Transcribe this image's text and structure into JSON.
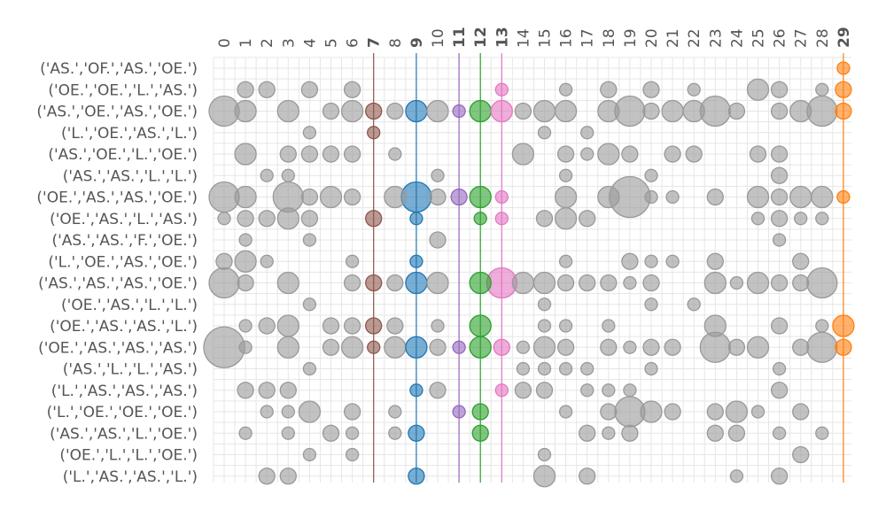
{
  "chart_data": {
    "type": "scatter",
    "title": "",
    "xlabel": "",
    "ylabel": "",
    "x_categories": [
      "0",
      "1",
      "2",
      "3",
      "4",
      "5",
      "6",
      "7",
      "8",
      "9",
      "10",
      "11",
      "12",
      "13",
      "14",
      "15",
      "16",
      "17",
      "18",
      "19",
      "20",
      "21",
      "22",
      "23",
      "24",
      "25",
      "26",
      "27",
      "28",
      "29"
    ],
    "y_categories": [
      "('AS.','OF.','AS.','OE.')",
      "('OE.','OE.','L.','AS.')",
      "('AS.','OE.','AS.','OE.')",
      "('L.','OE.','AS.','L.')",
      "('AS.','OE.','L.','OE.')",
      "('AS.','AS.','L.','L.')",
      "('OE.','AS.','AS.','OE.')",
      "('OE.','AS.','L.','AS.')",
      "('AS.','AS.','F.','OE.')",
      "('L.','OE.','AS.','OE.')",
      "('AS.','AS.','AS.','OE.')",
      "('OE.','AS.','L.','L.')",
      "('OE.','AS.','AS.','L.')",
      "('OE.','AS.','AS.','AS.')",
      "('AS.','L.','L.','AS.')",
      "('L.','AS.','AS.','AS.')",
      "('L.','OE.','OE.','OE.')",
      "('AS.','AS.','L.','OE.')",
      "('OE.','L.','L.','OE.')",
      "('L.','AS.','AS.','L.')"
    ],
    "highlighted_columns": [
      {
        "x": 7,
        "color": "#8c564b"
      },
      {
        "x": 9,
        "color": "#1f77b4"
      },
      {
        "x": 11,
        "color": "#9467bd"
      },
      {
        "x": 12,
        "color": "#2ca02c"
      },
      {
        "x": 13,
        "color": "#e377c2"
      },
      {
        "x": 29,
        "color": "#ff7f0e"
      }
    ],
    "default_color": "#999999",
    "grid": true,
    "size_unit": "relative marker size (1-5)",
    "points": [
      [
        29,
        0,
        1
      ],
      [
        1,
        1,
        2
      ],
      [
        2,
        1,
        2
      ],
      [
        4,
        1,
        2
      ],
      [
        6,
        1,
        2
      ],
      [
        13,
        1,
        1
      ],
      [
        16,
        1,
        1
      ],
      [
        18,
        1,
        2
      ],
      [
        20,
        1,
        2
      ],
      [
        22,
        1,
        1
      ],
      [
        25,
        1,
        3
      ],
      [
        26,
        1,
        2
      ],
      [
        28,
        1,
        1
      ],
      [
        29,
        1,
        2
      ],
      [
        0,
        2,
        4
      ],
      [
        1,
        2,
        3
      ],
      [
        3,
        2,
        3
      ],
      [
        5,
        2,
        2
      ],
      [
        6,
        2,
        3
      ],
      [
        7,
        2,
        2
      ],
      [
        8,
        2,
        2
      ],
      [
        9,
        2,
        3
      ],
      [
        10,
        2,
        3
      ],
      [
        11,
        2,
        1
      ],
      [
        12,
        2,
        3
      ],
      [
        13,
        2,
        3
      ],
      [
        14,
        2,
        2
      ],
      [
        15,
        2,
        3
      ],
      [
        16,
        2,
        3
      ],
      [
        18,
        2,
        3
      ],
      [
        19,
        2,
        4
      ],
      [
        20,
        2,
        2
      ],
      [
        21,
        2,
        3
      ],
      [
        22,
        2,
        3
      ],
      [
        23,
        2,
        4
      ],
      [
        24,
        2,
        2
      ],
      [
        26,
        2,
        2
      ],
      [
        27,
        2,
        3
      ],
      [
        28,
        2,
        4
      ],
      [
        29,
        2,
        2
      ],
      [
        4,
        3,
        1
      ],
      [
        7,
        3,
        1
      ],
      [
        15,
        3,
        1
      ],
      [
        17,
        3,
        1
      ],
      [
        1,
        4,
        3
      ],
      [
        3,
        4,
        2
      ],
      [
        4,
        4,
        2
      ],
      [
        5,
        4,
        2
      ],
      [
        6,
        4,
        2
      ],
      [
        8,
        4,
        1
      ],
      [
        14,
        4,
        3
      ],
      [
        16,
        4,
        2
      ],
      [
        17,
        4,
        1
      ],
      [
        18,
        4,
        3
      ],
      [
        19,
        4,
        2
      ],
      [
        21,
        4,
        2
      ],
      [
        22,
        4,
        2
      ],
      [
        25,
        4,
        2
      ],
      [
        26,
        4,
        2
      ],
      [
        2,
        5,
        1
      ],
      [
        3,
        5,
        1
      ],
      [
        10,
        5,
        1
      ],
      [
        16,
        5,
        1
      ],
      [
        20,
        5,
        1
      ],
      [
        26,
        5,
        2
      ],
      [
        0,
        6,
        4
      ],
      [
        1,
        6,
        3
      ],
      [
        3,
        6,
        4
      ],
      [
        4,
        6,
        2
      ],
      [
        5,
        6,
        3
      ],
      [
        6,
        6,
        2
      ],
      [
        8,
        6,
        3
      ],
      [
        9,
        6,
        4
      ],
      [
        10,
        6,
        2
      ],
      [
        11,
        6,
        2
      ],
      [
        12,
        6,
        3
      ],
      [
        13,
        6,
        1
      ],
      [
        16,
        6,
        3
      ],
      [
        18,
        6,
        3
      ],
      [
        19,
        6,
        5
      ],
      [
        20,
        6,
        1
      ],
      [
        21,
        6,
        1
      ],
      [
        23,
        6,
        2
      ],
      [
        25,
        6,
        3
      ],
      [
        26,
        6,
        2
      ],
      [
        27,
        6,
        3
      ],
      [
        28,
        6,
        3
      ],
      [
        29,
        6,
        1
      ],
      [
        0,
        7,
        1
      ],
      [
        1,
        7,
        2
      ],
      [
        2,
        7,
        2
      ],
      [
        3,
        7,
        3
      ],
      [
        4,
        7,
        2
      ],
      [
        7,
        7,
        2
      ],
      [
        9,
        7,
        1
      ],
      [
        12,
        7,
        1
      ],
      [
        13,
        7,
        1
      ],
      [
        15,
        7,
        2
      ],
      [
        16,
        7,
        3
      ],
      [
        17,
        7,
        2
      ],
      [
        25,
        7,
        1
      ],
      [
        26,
        7,
        2
      ],
      [
        27,
        7,
        1
      ],
      [
        28,
        7,
        1
      ],
      [
        1,
        8,
        1
      ],
      [
        4,
        8,
        1
      ],
      [
        10,
        8,
        2
      ],
      [
        26,
        8,
        1
      ],
      [
        0,
        9,
        2
      ],
      [
        1,
        9,
        3
      ],
      [
        2,
        9,
        1
      ],
      [
        6,
        9,
        1
      ],
      [
        9,
        9,
        1
      ],
      [
        16,
        9,
        1
      ],
      [
        19,
        9,
        2
      ],
      [
        20,
        9,
        1
      ],
      [
        21,
        9,
        1
      ],
      [
        23,
        9,
        2
      ],
      [
        27,
        9,
        2
      ],
      [
        0,
        10,
        4
      ],
      [
        1,
        10,
        2
      ],
      [
        3,
        10,
        3
      ],
      [
        6,
        10,
        2
      ],
      [
        7,
        10,
        2
      ],
      [
        8,
        10,
        2
      ],
      [
        9,
        10,
        3
      ],
      [
        10,
        10,
        3
      ],
      [
        12,
        10,
        3
      ],
      [
        13,
        10,
        4
      ],
      [
        14,
        10,
        3
      ],
      [
        15,
        10,
        3
      ],
      [
        16,
        10,
        2
      ],
      [
        17,
        10,
        2
      ],
      [
        18,
        10,
        2
      ],
      [
        19,
        10,
        1
      ],
      [
        20,
        10,
        2
      ],
      [
        23,
        10,
        3
      ],
      [
        24,
        10,
        1
      ],
      [
        25,
        10,
        3
      ],
      [
        26,
        10,
        2
      ],
      [
        27,
        10,
        2
      ],
      [
        28,
        10,
        4
      ],
      [
        4,
        11,
        1
      ],
      [
        15,
        11,
        1
      ],
      [
        20,
        11,
        1
      ],
      [
        22,
        11,
        1
      ],
      [
        1,
        12,
        1
      ],
      [
        2,
        12,
        2
      ],
      [
        3,
        12,
        3
      ],
      [
        5,
        12,
        2
      ],
      [
        6,
        12,
        2
      ],
      [
        7,
        12,
        2
      ],
      [
        8,
        12,
        2
      ],
      [
        10,
        12,
        1
      ],
      [
        12,
        12,
        3
      ],
      [
        15,
        12,
        1
      ],
      [
        16,
        12,
        1
      ],
      [
        18,
        12,
        1
      ],
      [
        23,
        12,
        3
      ],
      [
        26,
        12,
        2
      ],
      [
        28,
        12,
        1
      ],
      [
        29,
        12,
        3
      ],
      [
        0,
        13,
        5
      ],
      [
        1,
        13,
        1
      ],
      [
        3,
        13,
        3
      ],
      [
        5,
        13,
        2
      ],
      [
        6,
        13,
        3
      ],
      [
        7,
        13,
        1
      ],
      [
        8,
        13,
        3
      ],
      [
        9,
        13,
        3
      ],
      [
        10,
        13,
        2
      ],
      [
        11,
        13,
        1
      ],
      [
        12,
        13,
        3
      ],
      [
        13,
        13,
        2
      ],
      [
        14,
        13,
        1
      ],
      [
        15,
        13,
        3
      ],
      [
        16,
        13,
        2
      ],
      [
        18,
        13,
        2
      ],
      [
        19,
        13,
        1
      ],
      [
        20,
        13,
        2
      ],
      [
        21,
        13,
        2
      ],
      [
        23,
        13,
        4
      ],
      [
        24,
        13,
        2
      ],
      [
        25,
        13,
        3
      ],
      [
        27,
        13,
        2
      ],
      [
        28,
        13,
        4
      ],
      [
        29,
        13,
        2
      ],
      [
        4,
        14,
        1
      ],
      [
        14,
        14,
        1
      ],
      [
        15,
        14,
        1
      ],
      [
        16,
        14,
        1
      ],
      [
        17,
        14,
        1
      ],
      [
        20,
        14,
        1
      ],
      [
        26,
        14,
        1
      ],
      [
        1,
        15,
        2
      ],
      [
        2,
        15,
        2
      ],
      [
        3,
        15,
        2
      ],
      [
        9,
        15,
        1
      ],
      [
        10,
        15,
        2
      ],
      [
        13,
        15,
        1
      ],
      [
        14,
        15,
        2
      ],
      [
        15,
        15,
        2
      ],
      [
        17,
        15,
        1
      ],
      [
        18,
        15,
        1
      ],
      [
        19,
        15,
        1
      ],
      [
        26,
        15,
        2
      ],
      [
        2,
        16,
        1
      ],
      [
        3,
        16,
        1
      ],
      [
        4,
        16,
        3
      ],
      [
        6,
        16,
        2
      ],
      [
        8,
        16,
        1
      ],
      [
        11,
        16,
        1
      ],
      [
        12,
        16,
        2
      ],
      [
        16,
        16,
        1
      ],
      [
        18,
        16,
        2
      ],
      [
        19,
        16,
        4
      ],
      [
        20,
        16,
        3
      ],
      [
        21,
        16,
        2
      ],
      [
        23,
        16,
        2
      ],
      [
        24,
        16,
        3
      ],
      [
        25,
        16,
        1
      ],
      [
        27,
        16,
        2
      ],
      [
        1,
        17,
        1
      ],
      [
        3,
        17,
        1
      ],
      [
        5,
        17,
        2
      ],
      [
        6,
        17,
        1
      ],
      [
        8,
        17,
        1
      ],
      [
        9,
        17,
        2
      ],
      [
        12,
        17,
        2
      ],
      [
        17,
        17,
        2
      ],
      [
        18,
        17,
        1
      ],
      [
        19,
        17,
        2
      ],
      [
        23,
        17,
        2
      ],
      [
        24,
        17,
        2
      ],
      [
        26,
        17,
        1
      ],
      [
        28,
        17,
        1
      ],
      [
        4,
        18,
        1
      ],
      [
        6,
        18,
        1
      ],
      [
        15,
        18,
        1
      ],
      [
        27,
        18,
        2
      ],
      [
        2,
        19,
        2
      ],
      [
        3,
        19,
        2
      ],
      [
        9,
        19,
        2
      ],
      [
        15,
        19,
        3
      ],
      [
        17,
        19,
        2
      ],
      [
        24,
        19,
        1
      ],
      [
        26,
        19,
        2
      ]
    ]
  }
}
